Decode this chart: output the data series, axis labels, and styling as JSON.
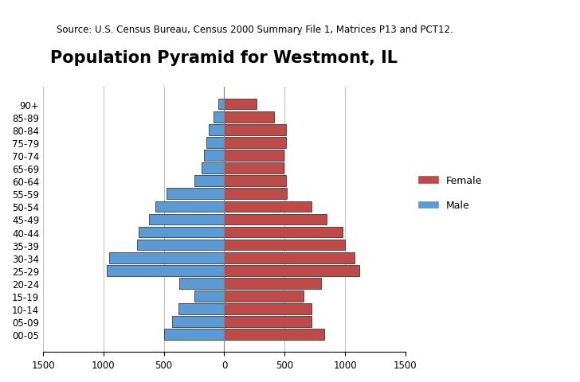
{
  "title": "Population Pyramid for Westmont, IL",
  "subtitle": "Source: U.S. Census Bureau, Census 2000 Summary File 1, Matrices P13 and PCT12.",
  "age_groups": [
    "00-05",
    "05-09",
    "10-14",
    "15-19",
    "20-24",
    "25-29",
    "30-34",
    "35-39",
    "40-44",
    "45-49",
    "50-54",
    "55-59",
    "60-64",
    "65-69",
    "70-74",
    "75-79",
    "80-84",
    "85-89",
    "90+"
  ],
  "male": [
    500,
    430,
    380,
    250,
    370,
    970,
    950,
    720,
    710,
    620,
    570,
    480,
    250,
    190,
    170,
    150,
    130,
    90,
    50
  ],
  "female": [
    830,
    720,
    720,
    660,
    800,
    1120,
    1080,
    1000,
    980,
    850,
    720,
    520,
    510,
    490,
    490,
    510,
    510,
    410,
    270
  ],
  "male_color": "#5B9BD5",
  "female_color": "#BE4B48",
  "xlim": [
    -1500,
    1500
  ],
  "xticks": [
    -1500,
    -1000,
    -500,
    0,
    500,
    1000,
    1500
  ],
  "xticklabels": [
    "1500",
    "1000",
    "500",
    "0",
    "500",
    "1000",
    "1500"
  ],
  "bar_edgecolor": "#1F1F1F",
  "bar_linewidth": 0.5,
  "background_color": "#FFFFFF",
  "grid_color": "#C0C0C0",
  "legend_female": "Female",
  "legend_male": "Male",
  "title_fontsize": 15,
  "subtitle_fontsize": 8.5,
  "tick_fontsize": 8.5
}
